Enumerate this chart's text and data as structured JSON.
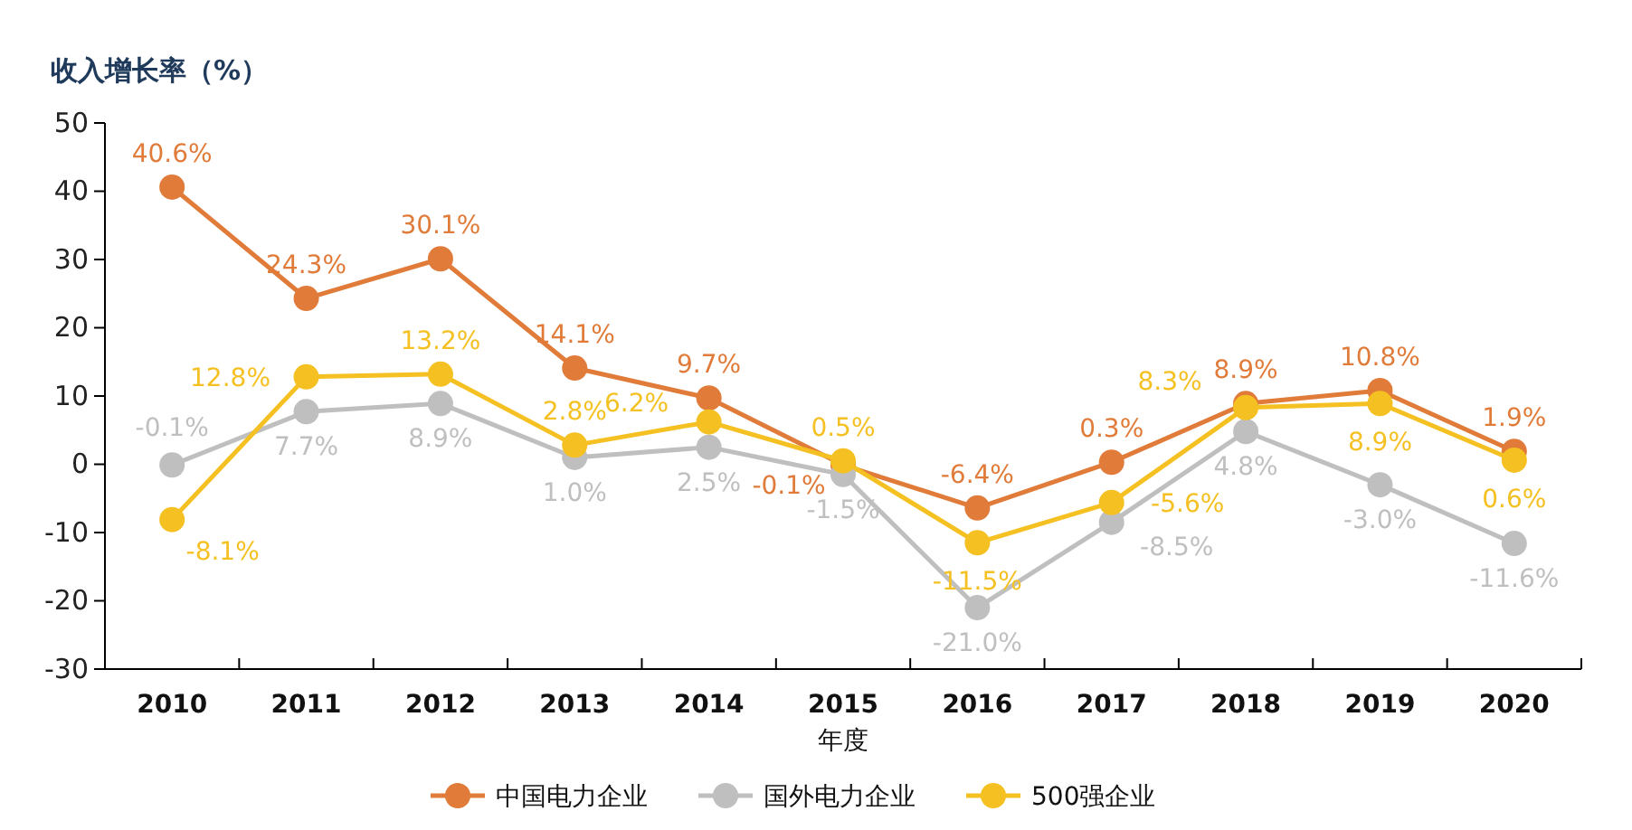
{
  "chart_data": {
    "type": "line",
    "ylabel": "收入增长率（%）",
    "xlabel": "年度",
    "categories": [
      "2010",
      "2011",
      "2012",
      "2013",
      "2014",
      "2015",
      "2016",
      "2017",
      "2018",
      "2019",
      "2020"
    ],
    "ylim": [
      -30,
      50
    ],
    "yticks": [
      -30,
      -20,
      -10,
      0,
      10,
      20,
      30,
      40,
      50
    ],
    "grid": false,
    "legend": "bottom",
    "marker": "circle",
    "line_style": "solid",
    "series": [
      {
        "name": "中国电力企业",
        "color": "#e07b39",
        "values": [
          40.6,
          24.3,
          30.1,
          14.1,
          9.7,
          -0.1,
          -6.4,
          0.3,
          8.9,
          10.8,
          1.9
        ],
        "value_labels": [
          "40.6%",
          "24.3%",
          "30.1%",
          "14.1%",
          "9.7%",
          "-0.1%",
          "-6.4%",
          "0.3%",
          "8.9%",
          "10.8%",
          "1.9%"
        ]
      },
      {
        "name": "国外电力企业",
        "color": "#bfbfbf",
        "values": [
          -0.1,
          7.7,
          8.9,
          1.0,
          2.5,
          -1.5,
          -21.0,
          -8.5,
          4.8,
          -3.0,
          -11.6
        ],
        "value_labels": [
          "-0.1%",
          "7.7%",
          "8.9%",
          "1.0%",
          "2.5%",
          "-1.5%",
          "-21.0%",
          "-8.5%",
          "4.8%",
          "-3.0%",
          "-11.6%"
        ]
      },
      {
        "name": "500强企业",
        "color": "#f5c021",
        "values": [
          -8.1,
          12.8,
          13.2,
          2.8,
          6.2,
          0.5,
          -11.5,
          -5.6,
          8.3,
          8.9,
          0.6
        ],
        "value_labels": [
          "-8.1%",
          "12.8%",
          "13.2%",
          "2.8%",
          "6.2%",
          "0.5%",
          "-11.5%",
          "-5.6%",
          "8.3%",
          "8.9%",
          "0.6%"
        ]
      }
    ]
  }
}
